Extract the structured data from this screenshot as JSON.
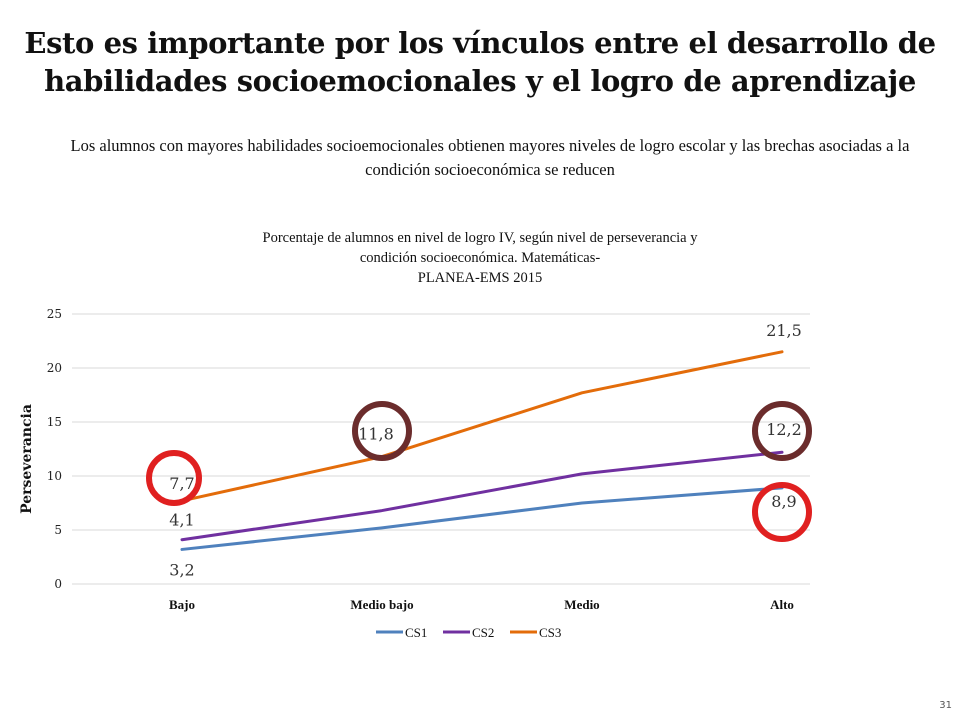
{
  "slide": {
    "title": "Esto es importante por los vínculos entre el desarrollo de habilidades socioemocionales y el logro de aprendizaje",
    "subtitle": "Los alumnos con mayores habilidades socioemocionales obtienen mayores niveles de logro escolar y las brechas asociadas a la condición socioeconómica se reducen",
    "page_number": "31"
  },
  "chart_data": {
    "type": "line",
    "title_lines": [
      "Porcentaje de alumnos en nivel de logro IV, según nivel de perseverancia y",
      "condición socioeconómica.  Matemáticas-",
      "PLANEA-EMS 2015"
    ],
    "ylabel": "Perseverancia",
    "xlabel": "",
    "categories": [
      "Bajo",
      "Medio bajo",
      "Medio",
      "Alto"
    ],
    "ylim": [
      0,
      25
    ],
    "yticks": [
      0,
      5,
      10,
      15,
      20,
      25
    ],
    "grid": true,
    "legend_position": "bottom",
    "series": [
      {
        "name": "CS1",
        "color": "#4f81bd",
        "values": [
          3.2,
          5.2,
          7.5,
          8.9
        ]
      },
      {
        "name": "CS2",
        "color": "#7030a0",
        "values": [
          4.1,
          6.8,
          10.2,
          12.2
        ]
      },
      {
        "name": "CS3",
        "color": "#e36c0a",
        "values": [
          7.7,
          11.8,
          17.7,
          21.5
        ]
      }
    ],
    "data_labels": [
      {
        "text": "3,2",
        "series": 0,
        "index": 0
      },
      {
        "text": "8,9",
        "series": 0,
        "index": 3
      },
      {
        "text": "4,1",
        "series": 1,
        "index": 0
      },
      {
        "text": "12,2",
        "series": 1,
        "index": 3
      },
      {
        "text": "7,7",
        "series": 2,
        "index": 0
      },
      {
        "text": "11,8",
        "series": 2,
        "index": 1
      },
      {
        "text": "21,5",
        "series": 2,
        "index": 3
      }
    ],
    "highlight_colors": {
      "red": "#e02020",
      "dark": "#6b2c2c"
    }
  }
}
